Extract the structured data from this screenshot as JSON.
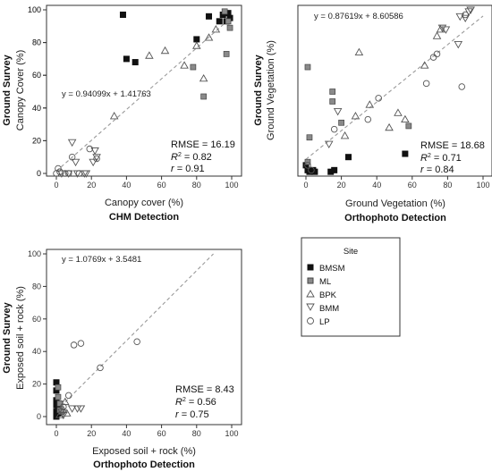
{
  "figure": {
    "panels": [
      {
        "id": "chm",
        "equation": "y = 0.94099x + 1.41763",
        "rmse": "RMSE = 16.19",
        "r2_prefix": "R",
        "r2_sup": "2",
        "r2_value": " = 0.82",
        "r_prefix": "r",
        "r_value": " = 0.91",
        "xlabel": "Canopy cover (%)",
        "xtitle": "CHM Detection",
        "ylabel": "Canopy Cover (%)",
        "ytitle": "Ground Survey"
      },
      {
        "id": "ortho-veg",
        "equation": "y = 0.87619x + 8.60586",
        "rmse": "RMSE = 18.68",
        "r2_prefix": "R",
        "r2_sup": "2",
        "r2_value": " = 0.71",
        "r_prefix": "r",
        "r_value": " = 0.84",
        "xlabel": "Ground Vegetation (%)",
        "xtitle": "Orthophoto Detection",
        "ylabel": "Ground Vegetation (%)",
        "ytitle": "Ground Survey"
      },
      {
        "id": "ortho-soil",
        "equation": "y = 1.0769x + 3.5481",
        "rmse": "RMSE = 8.43",
        "r2_prefix": "R",
        "r2_sup": "2",
        "r2_value": " = 0.56",
        "r_prefix": "r",
        "r_value": " = 0.75",
        "xlabel": "Exposed soil + rock (%)",
        "xtitle": "Orthophoto Detection",
        "ylabel": "Exposed soil + rock (%)",
        "ytitle": "Ground Survey"
      }
    ],
    "legend": {
      "title": "Site",
      "entries": [
        "BMSM",
        "ML",
        "BPK",
        "BMM",
        "LP"
      ]
    }
  },
  "chart_data": [
    {
      "type": "scatter",
      "xlabel": "Canopy cover (%)",
      "ylabel": "Canopy Cover (%)",
      "xlim": [
        0,
        100
      ],
      "ylim": [
        0,
        100
      ],
      "xticks": [
        0,
        20,
        40,
        60,
        80,
        100
      ],
      "yticks": [
        0,
        20,
        40,
        60,
        80,
        100
      ],
      "grid": false,
      "trendline": {
        "slope": 0.94099,
        "intercept": 1.41763,
        "style": "dashed"
      },
      "series": [
        {
          "name": "BMSM",
          "marker": "filled-square",
          "color": "#111111",
          "points": [
            [
              38,
              97
            ],
            [
              40,
              70
            ],
            [
              45,
              68
            ],
            [
              87,
              96
            ],
            [
              93,
              93
            ],
            [
              95,
              97
            ],
            [
              97,
              93
            ],
            [
              99,
              95
            ],
            [
              80,
              82
            ],
            [
              98,
              98
            ]
          ]
        },
        {
          "name": "ML",
          "marker": "gray-square",
          "color": "#8a8a8a",
          "points": [
            [
              84,
              47
            ],
            [
              78,
              65
            ],
            [
              97,
              73
            ],
            [
              96,
              99
            ],
            [
              99,
              89
            ],
            [
              98,
              93
            ]
          ]
        },
        {
          "name": "BPK",
          "marker": "open-triangle-up",
          "color": "#555555",
          "points": [
            [
              33,
              35
            ],
            [
              53,
              72
            ],
            [
              62,
              75
            ],
            [
              73,
              66
            ],
            [
              80,
              78
            ],
            [
              84,
              58
            ],
            [
              87,
              83
            ],
            [
              91,
              88
            ]
          ]
        },
        {
          "name": "BMM",
          "marker": "open-triangle-down",
          "color": "#555555",
          "points": [
            [
              9,
              19
            ],
            [
              3,
              0
            ],
            [
              7,
              0
            ],
            [
              11,
              7
            ],
            [
              16,
              0
            ],
            [
              17,
              0
            ],
            [
              21,
              7
            ],
            [
              23,
              10
            ],
            [
              22,
              14
            ],
            [
              12,
              0
            ]
          ]
        },
        {
          "name": "LP",
          "marker": "open-circle",
          "color": "#555555",
          "points": [
            [
              0,
              0
            ],
            [
              1,
              3
            ],
            [
              2,
              1
            ],
            [
              5,
              0
            ],
            [
              7,
              0
            ],
            [
              9,
              10
            ],
            [
              13,
              0
            ],
            [
              19,
              15
            ],
            [
              23,
              9
            ]
          ]
        }
      ],
      "annotations": [
        "y = 0.94099x + 1.41763",
        "RMSE = 16.19",
        "R2 = 0.82",
        "r = 0.91"
      ]
    },
    {
      "type": "scatter",
      "xlabel": "Ground Vegetation (%)",
      "ylabel": "Ground Vegetation (%)",
      "xlim": [
        0,
        100
      ],
      "ylim": [
        0,
        100
      ],
      "xticks": [
        0,
        20,
        40,
        60,
        80,
        100
      ],
      "yticks": [
        0,
        20,
        40,
        60,
        80,
        100
      ],
      "grid": false,
      "trendline": {
        "slope": 0.87619,
        "intercept": 8.60586,
        "style": "dashed"
      },
      "series": [
        {
          "name": "BMSM",
          "marker": "filled-square",
          "color": "#111111",
          "points": [
            [
              0,
              5
            ],
            [
              1,
              2
            ],
            [
              2,
              1
            ],
            [
              4,
              2
            ],
            [
              5,
              1
            ],
            [
              14,
              1
            ],
            [
              16,
              2
            ],
            [
              24,
              10
            ],
            [
              56,
              12
            ]
          ]
        },
        {
          "name": "ML",
          "marker": "gray-square",
          "color": "#8a8a8a",
          "points": [
            [
              1,
              65
            ],
            [
              2,
              22
            ],
            [
              1,
              7
            ],
            [
              15,
              50
            ],
            [
              15,
              44
            ],
            [
              20,
              31
            ],
            [
              58,
              29
            ]
          ]
        },
        {
          "name": "BPK",
          "marker": "open-triangle-up",
          "color": "#555555",
          "points": [
            [
              22,
              23
            ],
            [
              28,
              35
            ],
            [
              30,
              74
            ],
            [
              36,
              42
            ],
            [
              47,
              28
            ],
            [
              52,
              37
            ],
            [
              56,
              33
            ],
            [
              67,
              66
            ],
            [
              74,
              84
            ],
            [
              76,
              88
            ]
          ]
        },
        {
          "name": "BMM",
          "marker": "open-triangle-down",
          "color": "#555555",
          "points": [
            [
              13,
              18
            ],
            [
              18,
              38
            ],
            [
              77,
              89
            ],
            [
              79,
              88
            ],
            [
              87,
              96
            ],
            [
              90,
              95
            ],
            [
              86,
              79
            ],
            [
              92,
              99
            ],
            [
              93,
              100
            ]
          ]
        },
        {
          "name": "LP",
          "marker": "open-circle",
          "color": "#555555",
          "points": [
            [
              1,
              5
            ],
            [
              3,
              2
            ],
            [
              16,
              27
            ],
            [
              35,
              33
            ],
            [
              41,
              46
            ],
            [
              68,
              55
            ],
            [
              72,
              71
            ],
            [
              74,
              73
            ],
            [
              88,
              53
            ],
            [
              90,
              97
            ]
          ]
        }
      ],
      "annotations": [
        "y = 0.87619x + 8.60586",
        "RMSE = 18.68",
        "R2 = 0.71",
        "r = 0.84"
      ]
    },
    {
      "type": "scatter",
      "xlabel": "Exposed soil + rock (%)",
      "ylabel": "Exposed soil + rock (%)",
      "xlim": [
        0,
        100
      ],
      "ylim": [
        0,
        100
      ],
      "xticks": [
        0,
        20,
        40,
        60,
        80,
        100
      ],
      "yticks": [
        0,
        20,
        40,
        60,
        80,
        100
      ],
      "grid": false,
      "trendline": {
        "slope": 1.0769,
        "intercept": 3.5481,
        "style": "dashed"
      },
      "series": [
        {
          "name": "BMSM",
          "marker": "filled-square",
          "color": "#111111",
          "points": [
            [
              0,
              21
            ],
            [
              0,
              16
            ],
            [
              0,
              10
            ],
            [
              0,
              7
            ],
            [
              1,
              5
            ],
            [
              0,
              3
            ],
            [
              1,
              2
            ],
            [
              0,
              1
            ],
            [
              0,
              0
            ]
          ]
        },
        {
          "name": "ML",
          "marker": "gray-square",
          "color": "#8a8a8a",
          "points": [
            [
              1,
              18
            ],
            [
              1,
              12
            ],
            [
              2,
              8
            ],
            [
              2,
              4
            ],
            [
              3,
              3
            ]
          ]
        },
        {
          "name": "BPK",
          "marker": "open-triangle-up",
          "color": "#555555",
          "points": [
            [
              2,
              1
            ],
            [
              4,
              4
            ],
            [
              6,
              2
            ],
            [
              5,
              9
            ]
          ]
        },
        {
          "name": "BMM",
          "marker": "open-triangle-down",
          "color": "#555555",
          "points": [
            [
              4,
              1
            ],
            [
              9,
              5
            ],
            [
              12,
              5
            ],
            [
              14,
              5
            ],
            [
              3,
              3
            ]
          ]
        },
        {
          "name": "LP",
          "marker": "open-circle",
          "color": "#555555",
          "points": [
            [
              7,
              13
            ],
            [
              10,
              44
            ],
            [
              14,
              45
            ],
            [
              25,
              30
            ],
            [
              46,
              46
            ],
            [
              4,
              6
            ]
          ]
        }
      ],
      "annotations": [
        "y = 1.0769x + 3.5481",
        "RMSE = 8.43",
        "R2 = 0.56",
        "r = 0.75"
      ]
    }
  ]
}
